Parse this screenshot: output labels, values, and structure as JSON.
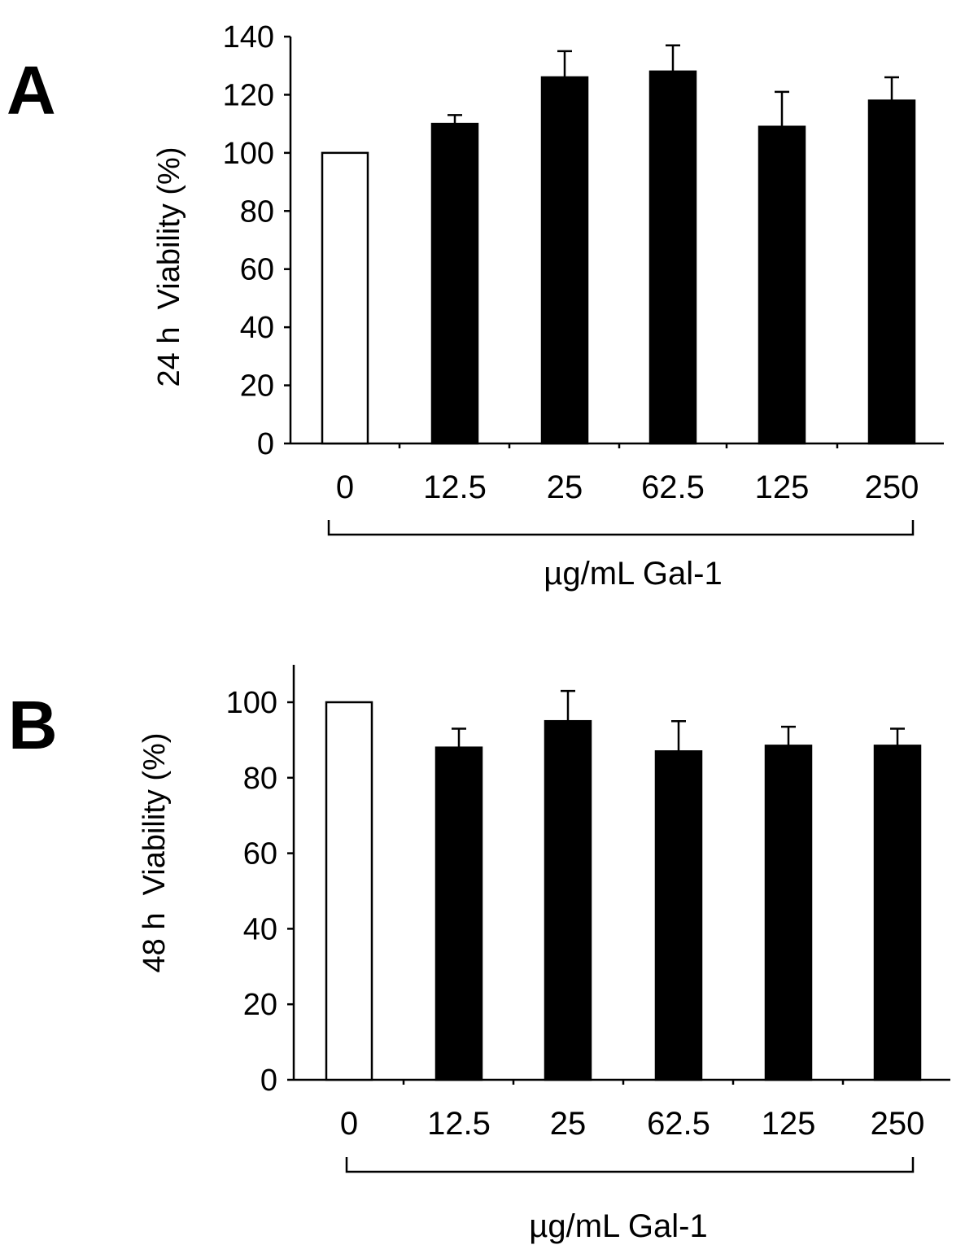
{
  "chart_data": [
    {
      "type": "bar",
      "panel": "A",
      "ylabel": "24 h  Viability (%)",
      "xlabel": "µg/mL Gal-1",
      "categories": [
        "0",
        "12.5",
        "25",
        "62.5",
        "125",
        "250"
      ],
      "values": [
        100,
        110,
        126,
        128,
        109,
        118
      ],
      "errors": [
        0,
        3,
        9,
        9,
        12,
        8
      ],
      "bar_fill": [
        "#ffffff",
        "#000000",
        "#000000",
        "#000000",
        "#000000",
        "#000000"
      ],
      "ylim": [
        0,
        140
      ],
      "yticks": [
        0,
        20,
        40,
        60,
        80,
        100,
        120,
        140
      ],
      "grid": false
    },
    {
      "type": "bar",
      "panel": "B",
      "ylabel": "48 h  Viability (%)",
      "xlabel": "µg/mL Gal-1",
      "categories": [
        "0",
        "12.5",
        "25",
        "62.5",
        "125",
        "250"
      ],
      "values": [
        100,
        88,
        95,
        87,
        88.5,
        88.5
      ],
      "errors": [
        0,
        5,
        8,
        8,
        5,
        4.5
      ],
      "bar_fill": [
        "#ffffff",
        "#000000",
        "#000000",
        "#000000",
        "#000000",
        "#000000"
      ],
      "ylim": [
        0,
        110
      ],
      "yticks": [
        0,
        20,
        40,
        60,
        80,
        100
      ],
      "grid": false
    }
  ]
}
